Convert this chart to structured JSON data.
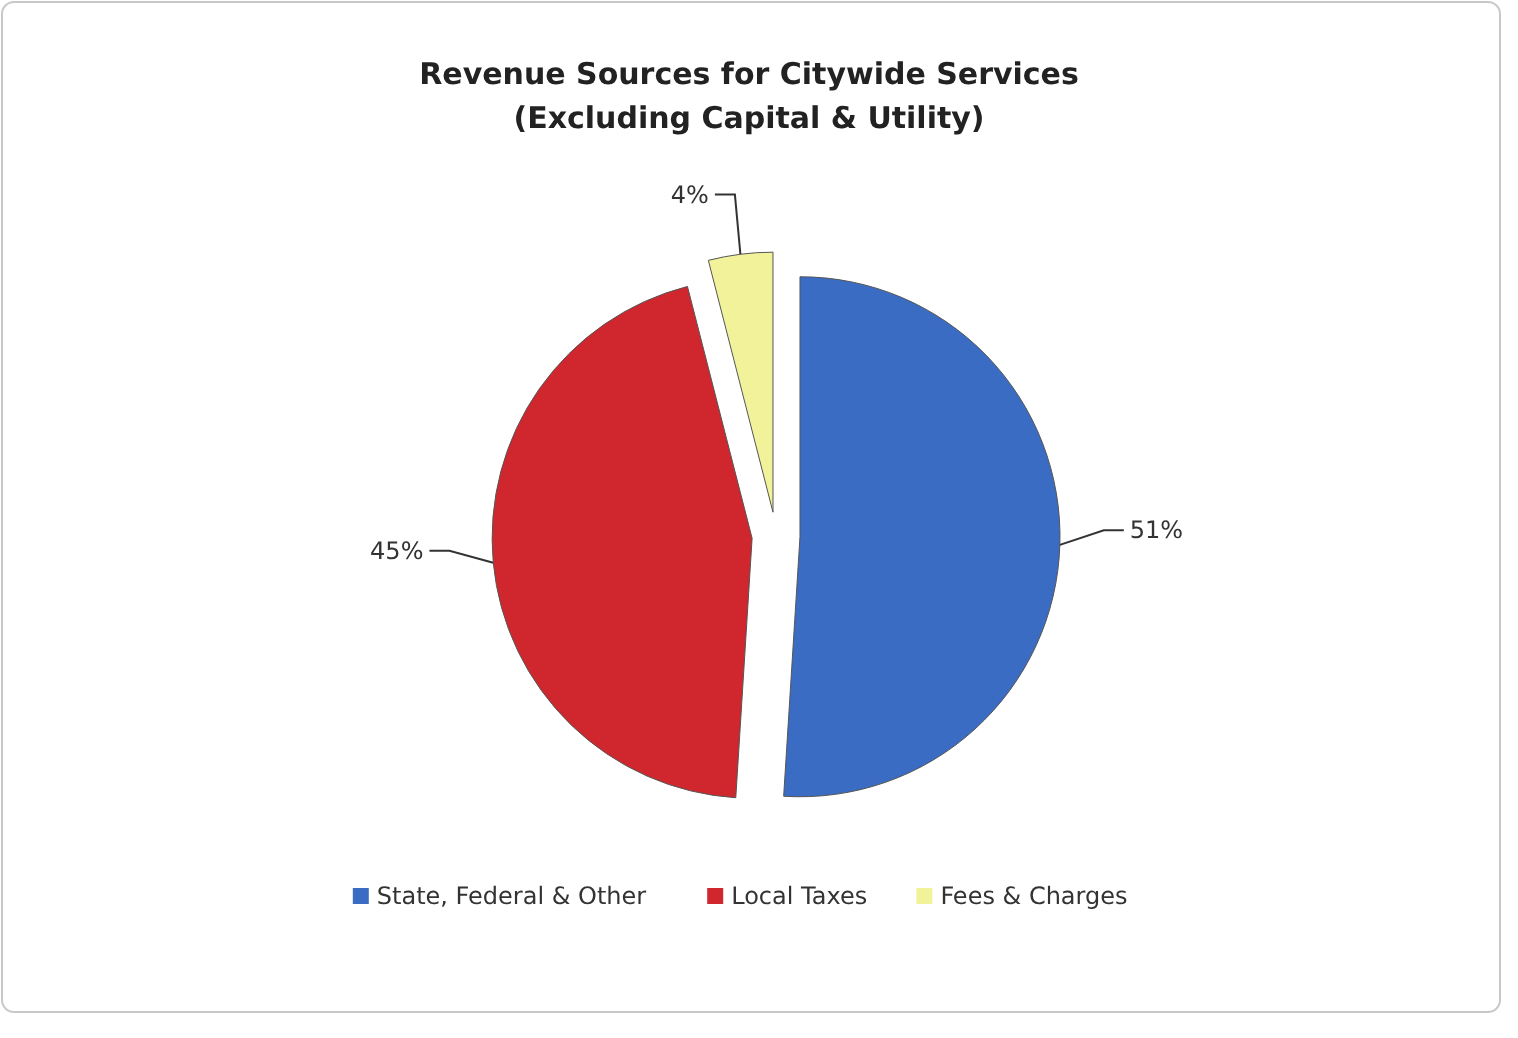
{
  "chart_data": {
    "type": "pie",
    "title": "Revenue Sources for Citywide Services\n(Excluding Capital & Utility)",
    "categories": [
      "State, Federal & Other",
      "Local Taxes",
      "Fees & Charges"
    ],
    "values": [
      51,
      45,
      4
    ],
    "colors": [
      "#3a6cc4",
      "#d0262e",
      "#f2f29a"
    ],
    "value_labels": [
      "51%",
      "45%",
      "4%"
    ],
    "legend": "bottom"
  }
}
